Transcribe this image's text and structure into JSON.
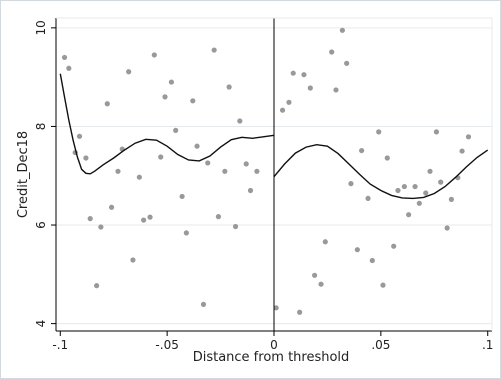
{
  "chart_data": {
    "type": "scatter",
    "xlabel": "Distance from threshold",
    "ylabel": "Credit_Dec18",
    "xlim": [
      -0.102,
      0.102
    ],
    "ylim": [
      3.85,
      10.2
    ],
    "x_ticks": [
      {
        "value": -0.1,
        "label": "-.1"
      },
      {
        "value": -0.05,
        "label": "-.05"
      },
      {
        "value": 0,
        "label": "0"
      },
      {
        "value": 0.05,
        "label": ".05"
      },
      {
        "value": 0.1,
        "label": ".1"
      }
    ],
    "y_ticks": [
      {
        "value": 4,
        "label": "4"
      },
      {
        "value": 6,
        "label": "6"
      },
      {
        "value": 8,
        "label": "8"
      },
      {
        "value": 10,
        "label": "10"
      }
    ],
    "threshold_x": 0,
    "grid": "horizontal",
    "colors": {
      "points": "#999999",
      "fit": "#111111",
      "grid": "#e6eaed",
      "axis": "#000000"
    },
    "points": [
      [
        -0.098,
        9.4
      ],
      [
        -0.096,
        9.18
      ],
      [
        -0.093,
        7.47
      ],
      [
        -0.091,
        7.8
      ],
      [
        -0.088,
        7.36
      ],
      [
        -0.086,
        6.13
      ],
      [
        -0.083,
        4.77
      ],
      [
        -0.081,
        5.96
      ],
      [
        -0.078,
        8.46
      ],
      [
        -0.076,
        6.36
      ],
      [
        -0.073,
        7.09
      ],
      [
        -0.071,
        7.54
      ],
      [
        -0.068,
        9.11
      ],
      [
        -0.066,
        5.29
      ],
      [
        -0.063,
        6.97
      ],
      [
        -0.061,
        6.1
      ],
      [
        -0.058,
        6.16
      ],
      [
        -0.056,
        9.45
      ],
      [
        -0.053,
        7.38
      ],
      [
        -0.051,
        8.6
      ],
      [
        -0.048,
        8.9
      ],
      [
        -0.046,
        7.92
      ],
      [
        -0.043,
        6.58
      ],
      [
        -0.041,
        5.84
      ],
      [
        -0.038,
        8.52
      ],
      [
        -0.036,
        7.6
      ],
      [
        -0.033,
        4.39
      ],
      [
        -0.031,
        7.26
      ],
      [
        -0.028,
        9.55
      ],
      [
        -0.026,
        6.17
      ],
      [
        -0.023,
        7.09
      ],
      [
        -0.021,
        8.8
      ],
      [
        -0.018,
        5.97
      ],
      [
        -0.016,
        8.11
      ],
      [
        -0.013,
        7.24
      ],
      [
        -0.011,
        6.7
      ],
      [
        -0.008,
        7.09
      ],
      [
        0.001,
        4.32
      ],
      [
        0.004,
        8.33
      ],
      [
        0.007,
        8.49
      ],
      [
        0.009,
        9.08
      ],
      [
        0.012,
        4.23
      ],
      [
        0.014,
        9.05
      ],
      [
        0.017,
        8.78
      ],
      [
        0.019,
        4.98
      ],
      [
        0.022,
        4.8
      ],
      [
        0.024,
        5.66
      ],
      [
        0.027,
        9.51
      ],
      [
        0.029,
        8.74
      ],
      [
        0.032,
        9.95
      ],
      [
        0.034,
        9.28
      ],
      [
        0.036,
        6.84
      ],
      [
        0.039,
        5.5
      ],
      [
        0.041,
        7.51
      ],
      [
        0.044,
        6.54
      ],
      [
        0.046,
        5.28
      ],
      [
        0.049,
        7.89
      ],
      [
        0.051,
        4.78
      ],
      [
        0.053,
        7.36
      ],
      [
        0.056,
        5.57
      ],
      [
        0.058,
        6.7
      ],
      [
        0.061,
        6.78
      ],
      [
        0.063,
        6.21
      ],
      [
        0.066,
        6.78
      ],
      [
        0.068,
        6.44
      ],
      [
        0.071,
        6.65
      ],
      [
        0.073,
        7.09
      ],
      [
        0.076,
        7.89
      ],
      [
        0.078,
        6.87
      ],
      [
        0.081,
        5.94
      ],
      [
        0.083,
        6.52
      ],
      [
        0.086,
        6.96
      ],
      [
        0.088,
        7.5
      ],
      [
        0.091,
        7.79
      ]
    ],
    "fit_left": [
      [
        -0.1,
        9.07
      ],
      [
        -0.098,
        8.6
      ],
      [
        -0.096,
        8.13
      ],
      [
        -0.094,
        7.72
      ],
      [
        -0.092,
        7.38
      ],
      [
        -0.09,
        7.13
      ],
      [
        -0.088,
        7.05
      ],
      [
        -0.086,
        7.04
      ],
      [
        -0.084,
        7.09
      ],
      [
        -0.08,
        7.22
      ],
      [
        -0.075,
        7.36
      ],
      [
        -0.07,
        7.52
      ],
      [
        -0.065,
        7.66
      ],
      [
        -0.06,
        7.74
      ],
      [
        -0.055,
        7.72
      ],
      [
        -0.05,
        7.6
      ],
      [
        -0.045,
        7.43
      ],
      [
        -0.04,
        7.32
      ],
      [
        -0.035,
        7.3
      ],
      [
        -0.03,
        7.4
      ],
      [
        -0.025,
        7.58
      ],
      [
        -0.02,
        7.73
      ],
      [
        -0.015,
        7.78
      ],
      [
        -0.01,
        7.76
      ],
      [
        -0.005,
        7.79
      ],
      [
        0.0,
        7.82
      ]
    ],
    "fit_right": [
      [
        0.0,
        6.98
      ],
      [
        0.005,
        7.24
      ],
      [
        0.01,
        7.46
      ],
      [
        0.015,
        7.58
      ],
      [
        0.02,
        7.63
      ],
      [
        0.025,
        7.6
      ],
      [
        0.03,
        7.45
      ],
      [
        0.035,
        7.24
      ],
      [
        0.04,
        7.03
      ],
      [
        0.045,
        6.83
      ],
      [
        0.05,
        6.7
      ],
      [
        0.055,
        6.6
      ],
      [
        0.06,
        6.55
      ],
      [
        0.065,
        6.54
      ],
      [
        0.07,
        6.56
      ],
      [
        0.075,
        6.64
      ],
      [
        0.08,
        6.78
      ],
      [
        0.085,
        6.97
      ],
      [
        0.09,
        7.18
      ],
      [
        0.095,
        7.37
      ],
      [
        0.1,
        7.52
      ]
    ]
  }
}
